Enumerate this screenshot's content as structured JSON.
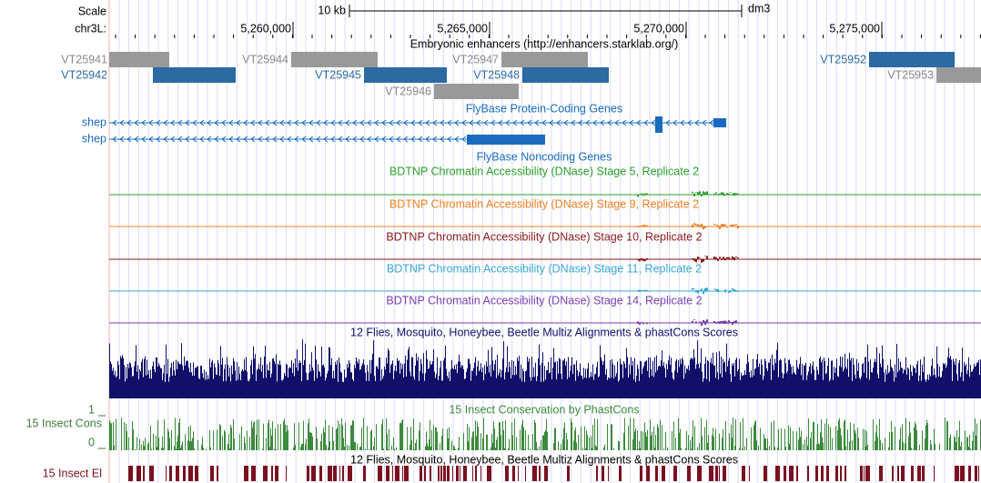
{
  "header": {
    "scale": "Scale",
    "scale_bar": "10 kb",
    "assembly": "dm3",
    "chrom": "chr3L:",
    "positions": [
      "5,260,000",
      "5,265,000",
      "5,270,000",
      "5,275,000"
    ]
  },
  "enhancers": {
    "title": "Embryonic enhancers (http://enhancers.starklab.org/)",
    "items": [
      "VT25941",
      "VT25942",
      "VT25944",
      "VT25945",
      "VT25947",
      "VT25948",
      "VT25946",
      "VT25952",
      "VT25953"
    ]
  },
  "protein_genes": {
    "title": "FlyBase Protein-Coding Genes",
    "genes": [
      "shep",
      "shep"
    ]
  },
  "noncoding_genes": {
    "title": "FlyBase Noncoding Genes"
  },
  "dnase": [
    "BDTNP Chromatin Accessibility (DNase) Stage 5, Replicate 2",
    "BDTNP Chromatin Accessibility (DNase) Stage 9, Replicate 2",
    "BDTNP Chromatin Accessibility (DNase) Stage 10, Replicate 2",
    "BDTNP Chromatin Accessibility (DNase) Stage 11, Replicate 2",
    "BDTNP Chromatin Accessibility (DNase) Stage 14, Replicate 2"
  ],
  "multiz": {
    "title": "12 Flies, Mosquito, Honeybee, Beetle Multiz Alignments & phastCons Scores"
  },
  "phastcons": {
    "title": "15 Insect Conservation by PhastCons",
    "label": "15 Insect Cons",
    "max": 1,
    "min": 0
  },
  "elements": {
    "title": "12 Flies, Mosquito, Honeybee, Beetle Multiz Alignments & phastCons Scores",
    "label": "15 Insect El"
  }
}
